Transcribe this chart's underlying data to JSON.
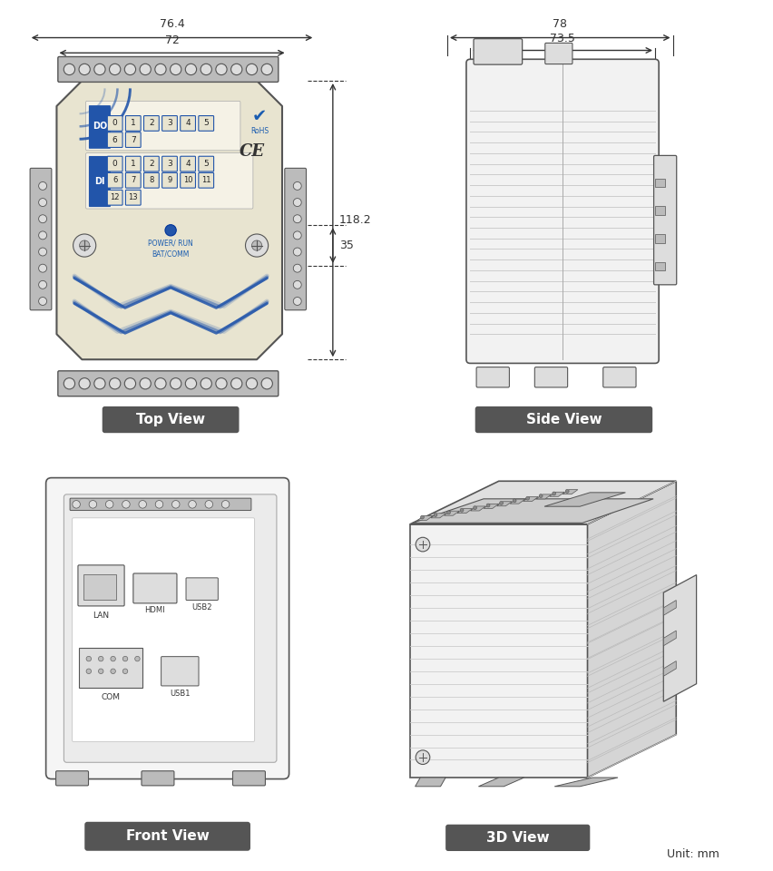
{
  "background_color": "#ffffff",
  "body_color": "#e8e4d0",
  "blue": "#2255aa",
  "line_color": "#555555",
  "dim_color": "#333333",
  "gray_light": "#dddddd",
  "gray_mid": "#bbbbbb",
  "gray_dark": "#888888",
  "label_bg": "#555555",
  "label_fg": "#ffffff",
  "top_view": {
    "label": "Top View",
    "dim_76_4": "76.4",
    "dim_72": "72",
    "dim_35": "35",
    "dim_118_2": "118.2"
  },
  "side_view": {
    "label": "Side View",
    "dim_78": "78",
    "dim_73_5": "73.5"
  },
  "front_view": {
    "label": "Front View",
    "ports": [
      "LAN",
      "HDMI",
      "USB2",
      "COM",
      "USB1"
    ]
  },
  "view_3d": {
    "label": "3D View"
  },
  "unit_text": "Unit: mm"
}
